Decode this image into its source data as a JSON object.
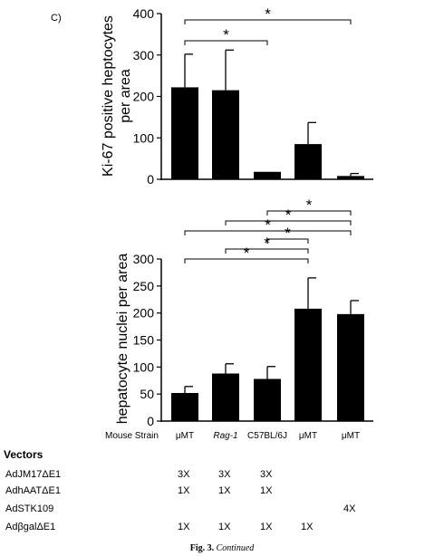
{
  "panel_label": "C)",
  "chart_data": [
    {
      "type": "bar",
      "ylabel_line1": "Ki-67 positive heptocytes",
      "ylabel_line2": "per area",
      "ylim": [
        0,
        400
      ],
      "yticks": [
        "0",
        "100",
        "200",
        "300",
        "400"
      ],
      "values": [
        222,
        215,
        18,
        85,
        8
      ],
      "errors": [
        80,
        97,
        null,
        52,
        6
      ],
      "significance": [
        {
          "from": 0,
          "to": 2,
          "label": "*"
        },
        {
          "from": 0,
          "to": 4,
          "label": "*"
        }
      ]
    },
    {
      "type": "bar",
      "ylabel": "hepatocyte nuclei per area",
      "ylim": [
        0,
        300
      ],
      "yticks": [
        "0",
        "50",
        "100",
        "150",
        "200",
        "250",
        "300"
      ],
      "categories_header": "Mouse Strain",
      "categories": [
        "μMT",
        "Rag-1",
        "C57BL/6J",
        "μMT",
        "μMT"
      ],
      "values": [
        52,
        88,
        78,
        208,
        198
      ],
      "errors": [
        12,
        18,
        23,
        57,
        25
      ],
      "significance": [
        {
          "from": 0,
          "to": 3,
          "label": "*"
        },
        {
          "from": 1,
          "to": 3,
          "label": "*"
        },
        {
          "from": 2,
          "to": 3,
          "label": "*"
        },
        {
          "from": 0,
          "to": 4,
          "label": "*"
        },
        {
          "from": 1,
          "to": 4,
          "label": "*"
        },
        {
          "from": 2,
          "to": 4,
          "label": "*"
        }
      ]
    }
  ],
  "vectors": {
    "header": "Vectors",
    "rows": [
      {
        "name": "AdJM17ΔE1",
        "doses": [
          "3X",
          "3X",
          "3X",
          "",
          ""
        ]
      },
      {
        "name": "AdhAATΔE1",
        "doses": [
          "1X",
          "1X",
          "1X",
          "",
          ""
        ]
      },
      {
        "name": "AdSTK109",
        "doses": [
          "",
          "",
          "",
          "",
          "4X"
        ]
      },
      {
        "name": "AdβgalΔE1",
        "doses": [
          "1X",
          "1X",
          "1X",
          "1X",
          ""
        ]
      }
    ]
  },
  "caption": {
    "fig": "Fig. 3.",
    "text": "Continued"
  }
}
